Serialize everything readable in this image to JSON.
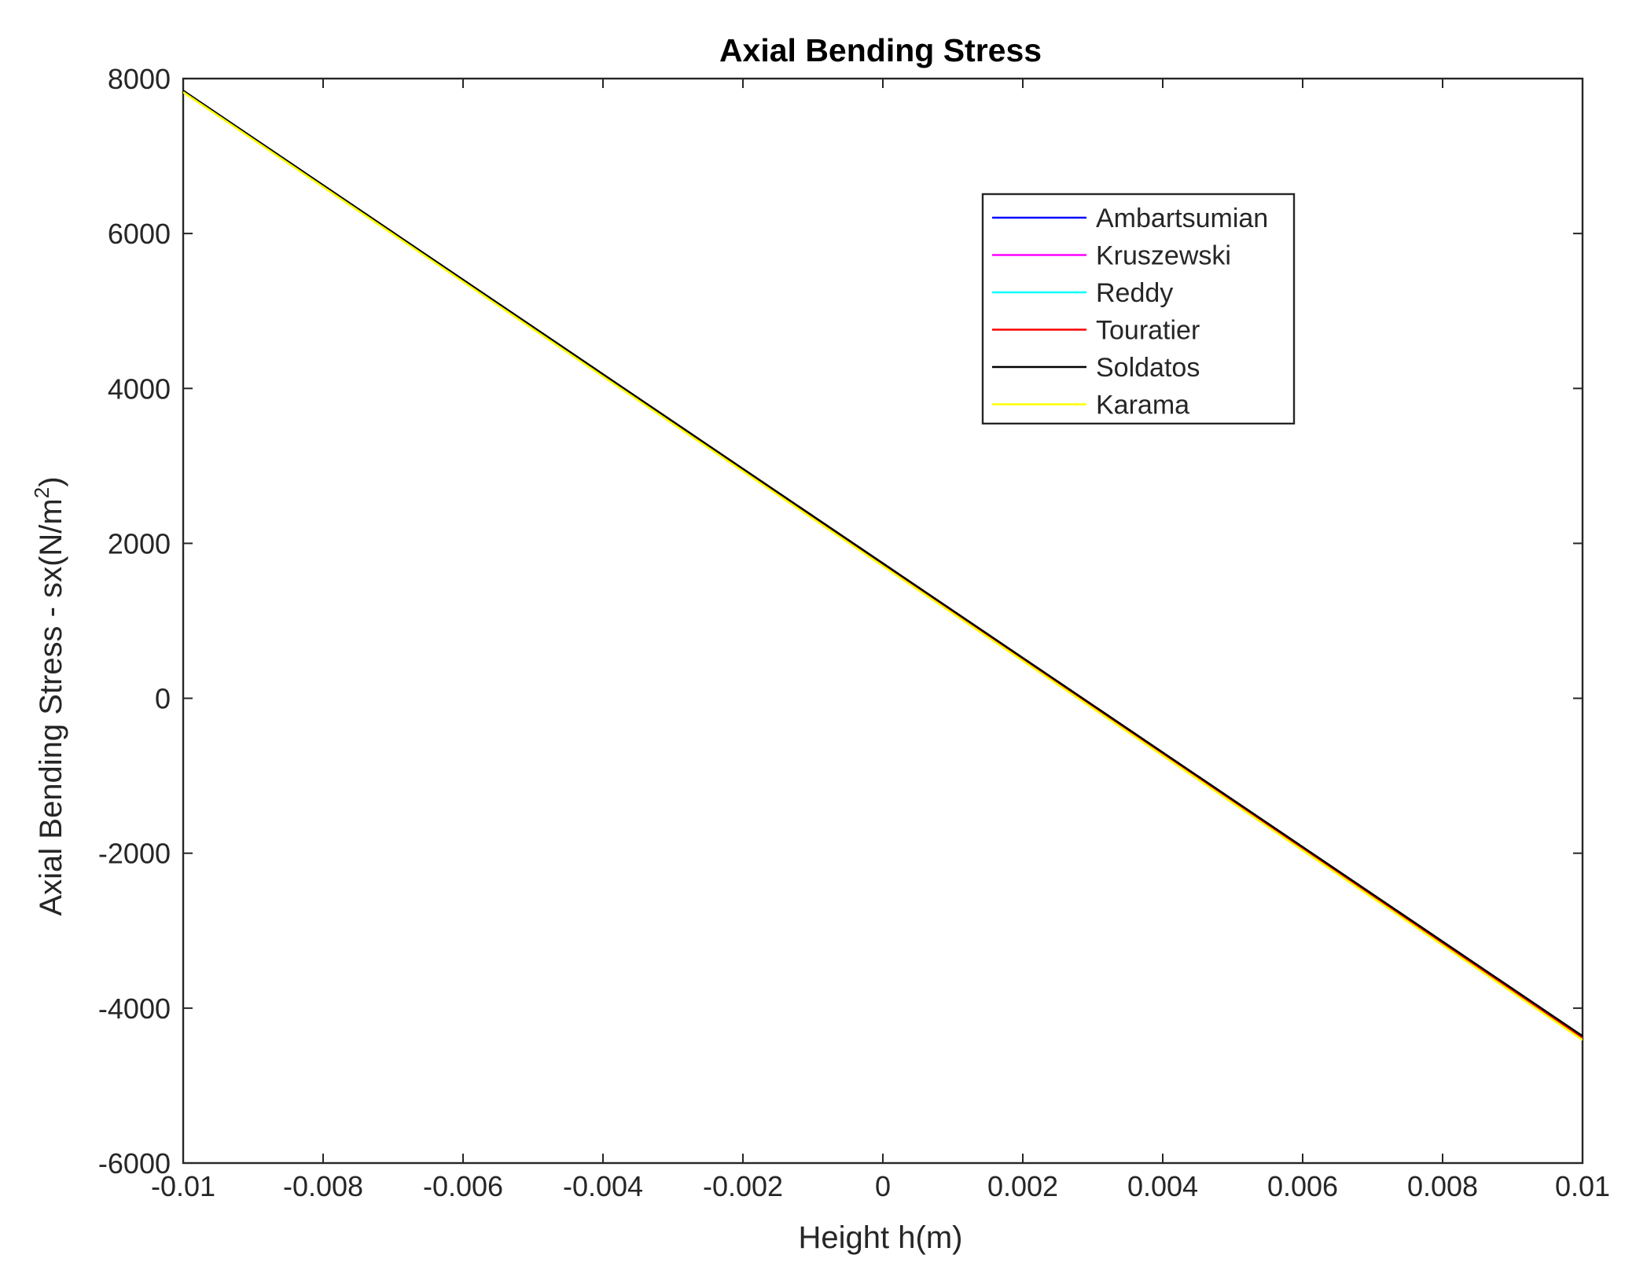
{
  "chart_data": {
    "type": "line",
    "title": "Axial Bending Stress",
    "xlabel": "Height h(m)",
    "ylabel_main": "Axial Bending Stress - sx(N/m",
    "ylabel_sup": "2",
    "ylabel_close": ")",
    "xlim": [
      -0.01,
      0.01
    ],
    "ylim": [
      -6000,
      8000
    ],
    "x_ticks": [
      -0.01,
      -0.008,
      -0.006,
      -0.004,
      -0.002,
      0,
      0.002,
      0.004,
      0.006,
      0.008,
      0.01
    ],
    "x_tick_labels": [
      "-0.01",
      "-0.008",
      "-0.006",
      "-0.004",
      "-0.002",
      "0",
      "0.002",
      "0.004",
      "0.006",
      "0.008",
      "0.01"
    ],
    "y_ticks": [
      -6000,
      -4000,
      -2000,
      0,
      2000,
      4000,
      6000,
      8000
    ],
    "y_tick_labels": [
      "-6000",
      "-4000",
      "-2000",
      "0",
      "2000",
      "4000",
      "6000",
      "8000"
    ],
    "grid": false,
    "legend_position": "top-right",
    "series": [
      {
        "name": "Ambartsumian",
        "color": "#0000ff",
        "x": [
          -0.01,
          0.01
        ],
        "y": [
          7830,
          -4390
        ]
      },
      {
        "name": "Kruszewski",
        "color": "#ff00ff",
        "x": [
          -0.01,
          0.01
        ],
        "y": [
          7830,
          -4390
        ]
      },
      {
        "name": "Reddy",
        "color": "#00ffff",
        "x": [
          -0.01,
          0.01
        ],
        "y": [
          7830,
          -4390
        ]
      },
      {
        "name": "Touratier",
        "color": "#ff0000",
        "x": [
          -0.01,
          0.01
        ],
        "y": [
          7830,
          -4390
        ]
      },
      {
        "name": "Soldatos",
        "color": "#000000",
        "x": [
          -0.01,
          0.01
        ],
        "y": [
          7845,
          -4360
        ]
      },
      {
        "name": "Karama",
        "color": "#ffff00",
        "x": [
          -0.01,
          0.01
        ],
        "y": [
          7825,
          -4410
        ]
      }
    ]
  }
}
